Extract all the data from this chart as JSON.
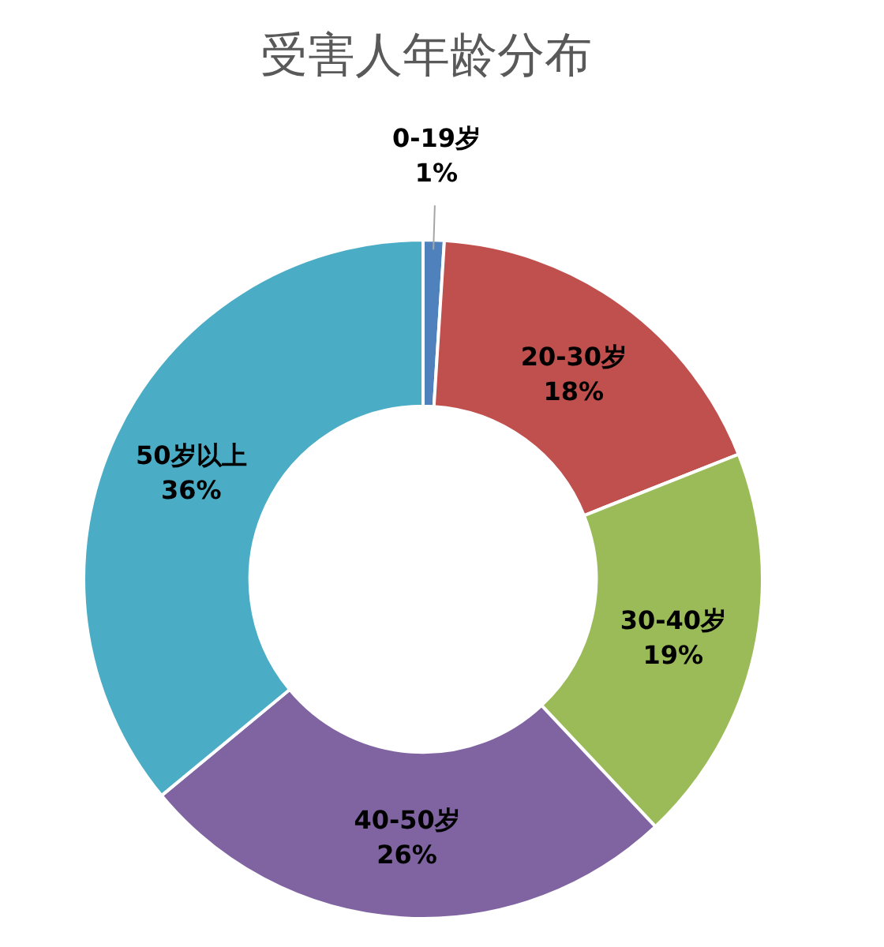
{
  "chart_data": {
    "type": "donut",
    "title": "受害人年龄分布",
    "categories": [
      "0-19岁",
      "20-30岁",
      "30-40岁",
      "40-50岁",
      "50岁以上"
    ],
    "values": [
      1,
      18,
      19,
      26,
      36
    ],
    "colors": [
      "#4f81bd",
      "#c0504d",
      "#9bbb59",
      "#8064a2",
      "#4bacc6"
    ],
    "value_labels": [
      "1%",
      "18%",
      "19%",
      "26%",
      "36%"
    ]
  }
}
